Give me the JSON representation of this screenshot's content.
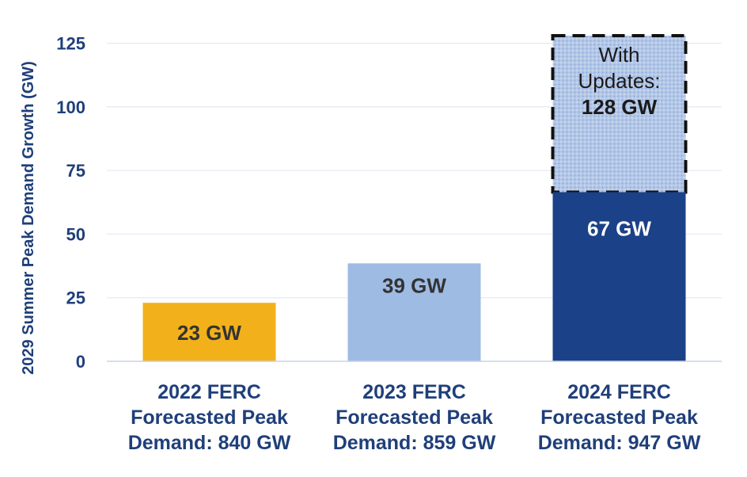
{
  "chart_data": {
    "type": "bar",
    "ylabel": "2029 Summer Peak Demand Growth (GW)",
    "ylim": [
      0,
      128
    ],
    "yticks": [
      0,
      25,
      50,
      75,
      100,
      125
    ],
    "grid": true,
    "categories": [
      [
        "2022 FERC",
        "Forecasted Peak",
        "Demand: 840 GW"
      ],
      [
        "2023 FERC",
        "Forecasted Peak",
        "Demand: 859 GW"
      ],
      [
        "2024 FERC",
        "Forecasted Peak",
        "Demand: 947 GW"
      ]
    ],
    "values": [
      23,
      38.5,
      66.5
    ],
    "value_labels": [
      "23 GW",
      "39 GW",
      "67 GW"
    ],
    "colors": [
      "#f2b11b",
      "#9ebbe3",
      "#1b4188"
    ],
    "label_colors": [
      "#333333",
      "#333333",
      "#ffffff"
    ],
    "update": {
      "category_index": 2,
      "value": 128,
      "lines": [
        "With",
        "Updates:",
        "128 GW"
      ],
      "color": "#a9c0e4",
      "border_color": "#111111"
    }
  }
}
